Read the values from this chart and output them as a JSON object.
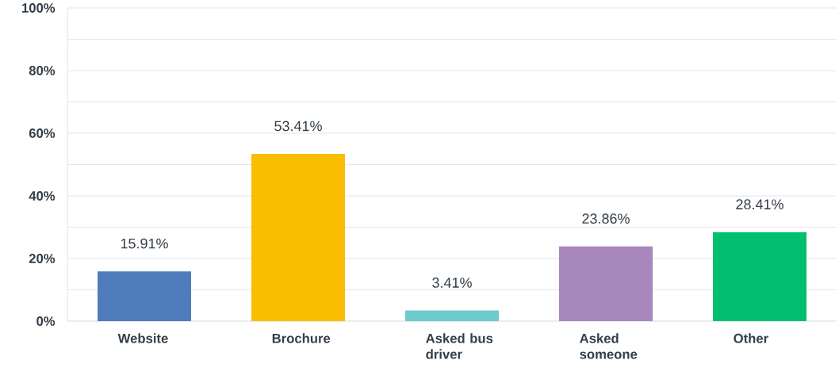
{
  "chart_data": {
    "type": "bar",
    "categories": [
      "Website",
      "Brochure",
      "Asked bus driver",
      "Asked someone",
      "Other"
    ],
    "values": [
      15.91,
      53.41,
      3.41,
      23.86,
      28.41
    ],
    "colors": [
      "#4f7cba",
      "#f9be00",
      "#6ccbcc",
      "#a887bc",
      "#00bf6f"
    ],
    "value_labels": [
      "15.91%",
      "53.41%",
      "3.41%",
      "23.86%",
      "28.41%"
    ],
    "ylim": [
      0,
      100
    ],
    "yticks": [
      {
        "value": 0,
        "label": "0%"
      },
      {
        "value": 10,
        "label": null
      },
      {
        "value": 20,
        "label": "20%"
      },
      {
        "value": 30,
        "label": null
      },
      {
        "value": 40,
        "label": "40%"
      },
      {
        "value": 50,
        "label": null
      },
      {
        "value": 60,
        "label": "60%"
      },
      {
        "value": 70,
        "label": null
      },
      {
        "value": 80,
        "label": "80%"
      },
      {
        "value": 90,
        "label": null
      },
      {
        "value": 100,
        "label": "100%"
      }
    ],
    "grid": "y"
  }
}
